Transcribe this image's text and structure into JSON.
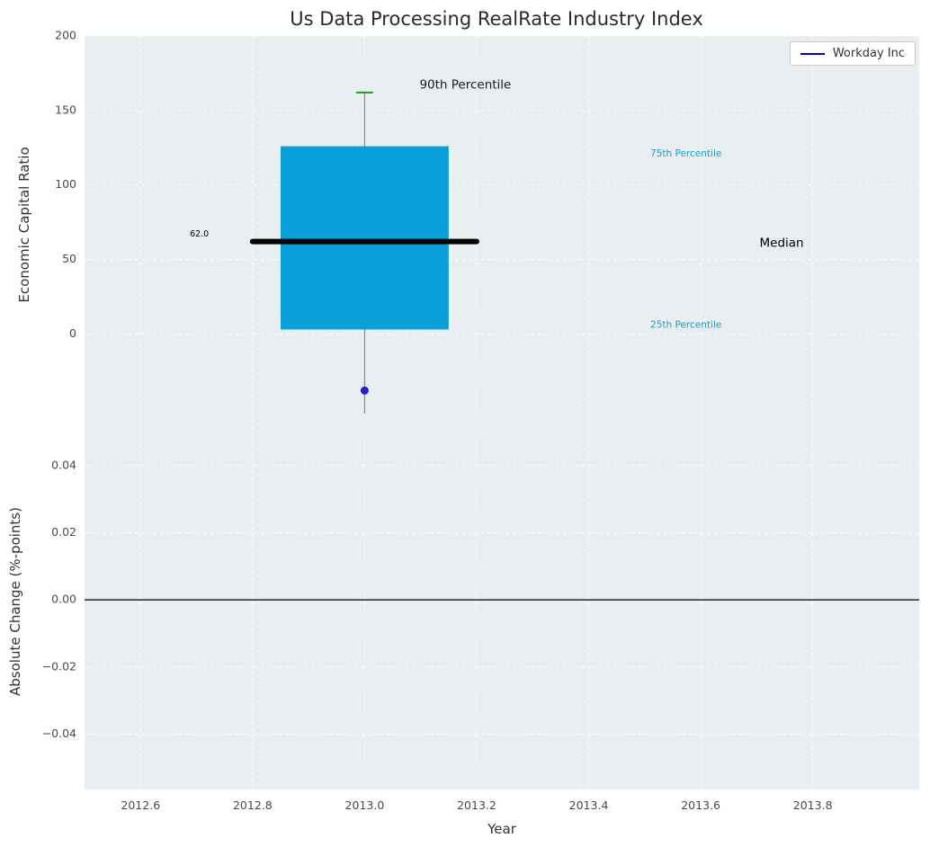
{
  "title": "Us Data Processing RealRate Industry Index",
  "legend": {
    "label": "Workday Inc"
  },
  "colors": {
    "figure_bg": "#ffffff",
    "plot_bg": "#e9eef0",
    "grid": "#ffffff",
    "box_fill": "#089fd9",
    "median_line": "#000000",
    "whisker": "#909090",
    "p90_cap": "#22a02c",
    "company_point": "#2222cc",
    "legend_line": "#0000cc",
    "percentile_label": "#1b9fc9",
    "zero_line": "#000000",
    "tick_label": "#4a4a4a",
    "title_color": "#2b2b2b"
  },
  "chart_data": [
    {
      "type": "box",
      "panel": "top",
      "title": "Us Data Processing RealRate Industry Index",
      "ylabel": "Economic Capital Ratio",
      "xlim": [
        2012.5,
        2013.99
      ],
      "ylim": [
        -53.5,
        200
      ],
      "grid": true,
      "legend_position": "upper right",
      "yticks": [
        {
          "v": 200,
          "label": "200"
        },
        {
          "v": 150,
          "label": "150"
        },
        {
          "v": 100,
          "label": "100"
        },
        {
          "v": 50,
          "label": "50"
        },
        {
          "v": 0,
          "label": "0"
        }
      ],
      "xgrid": [
        2012.6,
        2012.8,
        2013.0,
        2013.2,
        2013.4,
        2013.6,
        2013.8
      ],
      "box": {
        "x_center": 2013.0,
        "box_left": 2012.85,
        "box_right": 2013.15,
        "q1": 3,
        "q3": 126,
        "median": 62.0,
        "median_left": 2012.8,
        "median_right": 2013.2,
        "p90": 162,
        "p90_cap_halfwidth": 0.015,
        "whisker_low": -53.5
      },
      "company_point": {
        "x": 2013.0,
        "y": -38,
        "series": "Workday Inc"
      },
      "annotations": [
        {
          "name": "median-value-label",
          "text": "62.0",
          "x": 2012.688,
          "y": 67,
          "color": "#000000",
          "size": 9.5,
          "anchor": "start"
        },
        {
          "name": "p90-annotation",
          "text": "90th Percentile",
          "x": 2013.098,
          "y": 167,
          "color": "#1a1a1a",
          "size": 13.5,
          "anchor": "start"
        },
        {
          "name": "p75-annotation",
          "text": "75th Percentile",
          "x": 2013.51,
          "y": 121,
          "color": "#1b9fc9",
          "size": 10.5,
          "anchor": "start"
        },
        {
          "name": "median-annotation",
          "text": "Median",
          "x": 2013.705,
          "y": 61,
          "color": "#000000",
          "size": 13.5,
          "anchor": "start"
        },
        {
          "name": "p25-annotation",
          "text": "25th Percentile",
          "x": 2013.51,
          "y": 6,
          "color": "#1b9fc9",
          "size": 10.5,
          "anchor": "start"
        }
      ]
    },
    {
      "type": "line",
      "panel": "bottom",
      "ylabel": "Absolute Change (%-points)",
      "xlabel": "Year",
      "xlim": [
        2012.5,
        2013.99
      ],
      "ylim": [
        -0.0565,
        0.0555
      ],
      "grid": true,
      "yticks": [
        {
          "v": 0.04,
          "label": "0.04"
        },
        {
          "v": 0.02,
          "label": "0.02"
        },
        {
          "v": 0.0,
          "label": "0.00"
        },
        {
          "v": -0.02,
          "label": "−0.02"
        },
        {
          "v": -0.04,
          "label": "−0.04"
        }
      ],
      "xticks": [
        {
          "v": 2012.6,
          "label": "2012.6"
        },
        {
          "v": 2012.8,
          "label": "2012.8"
        },
        {
          "v": 2013.0,
          "label": "2013.0"
        },
        {
          "v": 2013.2,
          "label": "2013.2"
        },
        {
          "v": 2013.4,
          "label": "2013.4"
        },
        {
          "v": 2013.6,
          "label": "2013.6"
        },
        {
          "v": 2013.8,
          "label": "2013.8"
        }
      ],
      "zero_line_y": 0.0,
      "series": []
    }
  ]
}
